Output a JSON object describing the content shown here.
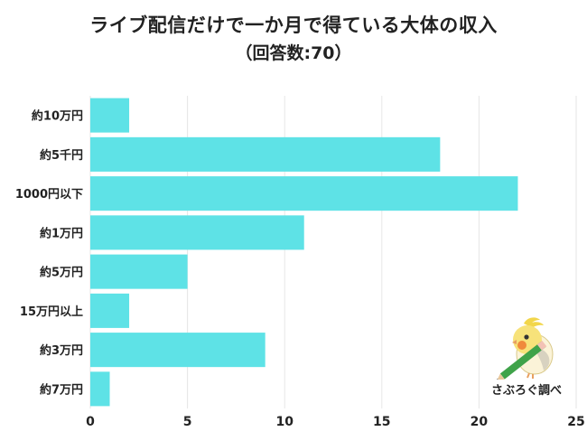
{
  "chart_data": {
    "type": "bar",
    "orientation": "horizontal",
    "title": "ライブ配信だけで一か月で得ている大体の収入",
    "subtitle": "（回答数:70）",
    "categories": [
      "約10万円",
      "約5千円",
      "1000円以下",
      "約1万円",
      "約5万円",
      "15万円以上",
      "約3万円",
      "約7万円"
    ],
    "values": [
      2,
      18,
      22,
      11,
      5,
      2,
      9,
      1
    ],
    "xlim": [
      0,
      25
    ],
    "xticks": [
      0,
      5,
      10,
      15,
      20,
      25
    ],
    "grid": true,
    "bar_color": "#5ee2e6"
  },
  "brand": {
    "label": "さぶろぐ調べ",
    "icon": "cockatiel-mascot-icon"
  }
}
